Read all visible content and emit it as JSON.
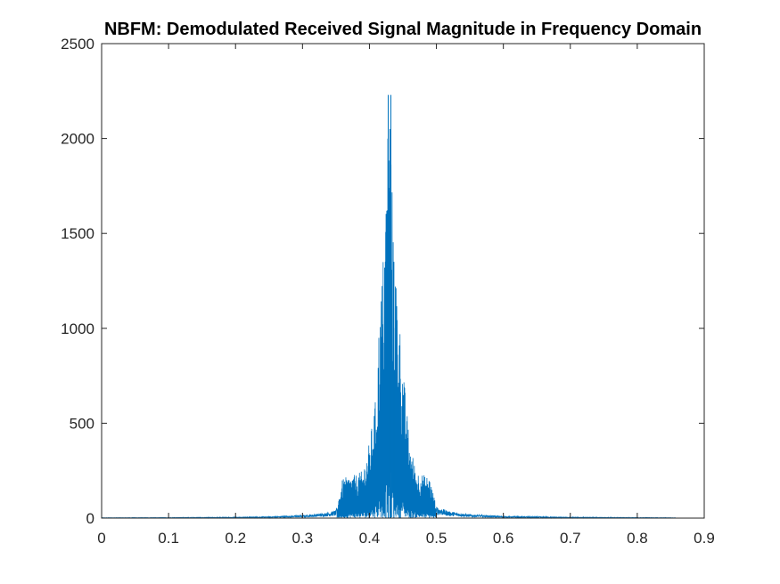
{
  "chart_data": {
    "type": "line",
    "title": "NBFM: Demodulated Received Signal Magnitude in Frequency Domain",
    "xlabel": "",
    "ylabel": "",
    "xlim": [
      0,
      0.9
    ],
    "ylim": [
      0,
      2500
    ],
    "xticks": [
      0,
      0.1,
      0.2,
      0.3,
      0.4,
      0.5,
      0.6,
      0.7,
      0.8,
      0.9
    ],
    "xtick_labels": [
      "0",
      "0.1",
      "0.2",
      "0.3",
      "0.4",
      "0.5",
      "0.6",
      "0.7",
      "0.8",
      "0.9"
    ],
    "yticks": [
      0,
      500,
      1000,
      1500,
      2000,
      2500
    ],
    "ytick_labels": [
      "0",
      "500",
      "1000",
      "1500",
      "2000",
      "2500"
    ],
    "grid": false,
    "series": [
      {
        "color": "#0072BD",
        "x_range": [
          0,
          0.857
        ],
        "x": [
          0,
          0.1,
          0.2,
          0.25,
          0.3,
          0.33,
          0.35,
          0.36,
          0.37,
          0.38,
          0.39,
          0.4,
          0.41,
          0.415,
          0.42,
          0.425,
          0.428,
          0.43,
          0.432,
          0.435,
          0.44,
          0.45,
          0.46,
          0.47,
          0.48,
          0.49,
          0.5,
          0.52,
          0.55,
          0.6,
          0.7,
          0.8,
          0.857
        ],
        "y": [
          2,
          3,
          5,
          8,
          15,
          25,
          40,
          210,
          220,
          230,
          250,
          400,
          650,
          1100,
          1350,
          1800,
          2230,
          2050,
          2230,
          1500,
          1300,
          800,
          400,
          250,
          230,
          215,
          60,
          35,
          20,
          10,
          5,
          3,
          2
        ],
        "peaks": [
          {
            "x": 0.428,
            "y": 2230
          },
          {
            "x": 0.432,
            "y": 2230
          },
          {
            "x": 0.4305,
            "y": 2050
          },
          {
            "x": 0.4245,
            "y": 1350
          },
          {
            "x": 0.4365,
            "y": 1350
          }
        ]
      }
    ]
  }
}
